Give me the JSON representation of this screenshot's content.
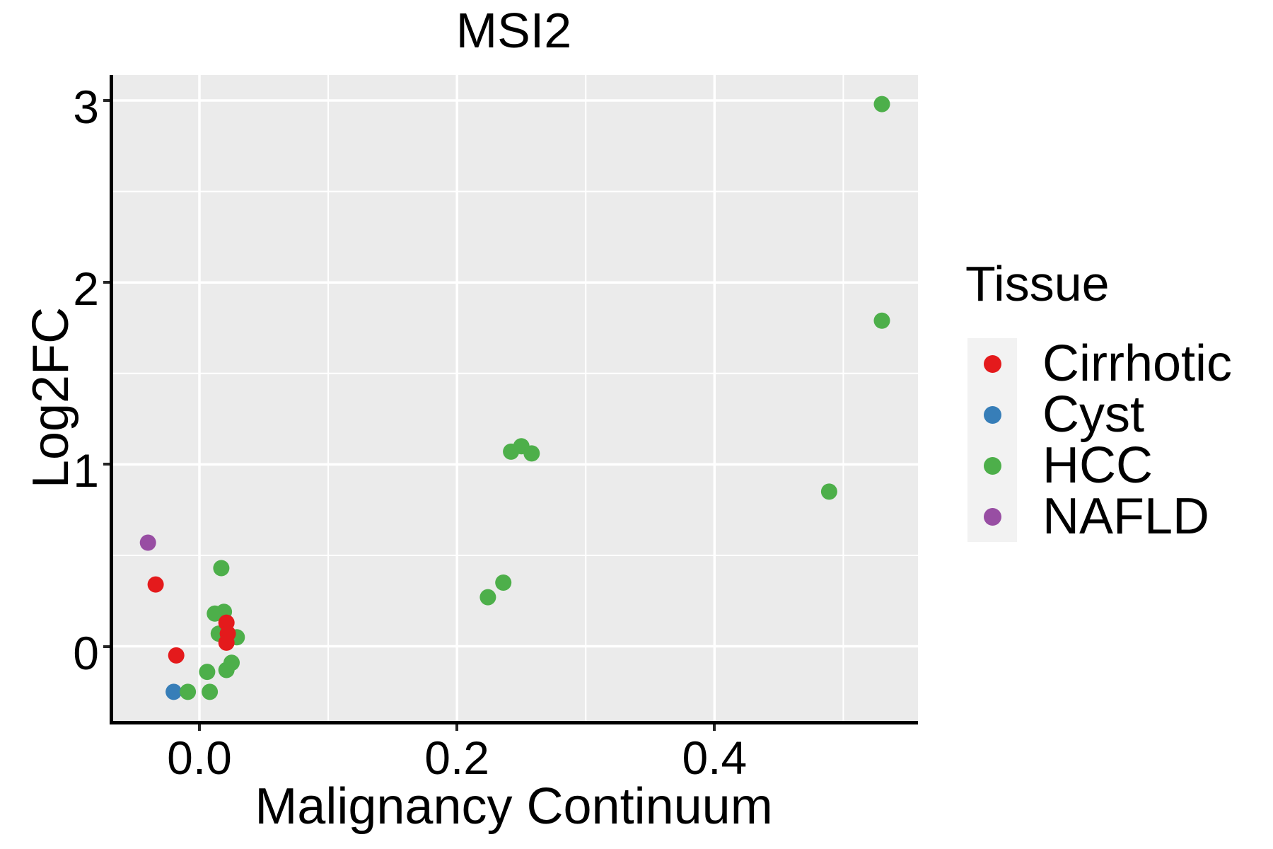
{
  "chart_data": {
    "type": "scatter",
    "title": "MSI2",
    "xlabel": "Malignancy Continuum",
    "ylabel": "Log2FC",
    "legend_title": "Tissue",
    "legend_position": "right",
    "grid": "major-and-minor-white-on-gray",
    "panel_background": "#EBEBEB",
    "gridline_color": "#FFFFFF",
    "axis_line_color": "#000000",
    "tick_color": "#262626",
    "xlim": [
      -0.067,
      0.558
    ],
    "ylim": [
      -0.41,
      3.14
    ],
    "x_ticks": [
      {
        "value": 0.0,
        "label": "0.0"
      },
      {
        "value": 0.2,
        "label": "0.2"
      },
      {
        "value": 0.4,
        "label": "0.4"
      }
    ],
    "x_minor_gridlines": [
      0.1,
      0.3,
      0.5
    ],
    "y_ticks": [
      {
        "value": 0,
        "label": "0"
      },
      {
        "value": 1,
        "label": "1"
      },
      {
        "value": 2,
        "label": "2"
      },
      {
        "value": 3,
        "label": "3"
      }
    ],
    "y_minor_gridlines": [
      0.5,
      1.5,
      2.5
    ],
    "point_radius_px": 11.5,
    "series": [
      {
        "name": "Cirrhotic",
        "color": "#E41A1C",
        "points": [
          [
            -0.034,
            0.34
          ],
          [
            -0.018,
            -0.05
          ],
          [
            0.021,
            0.13
          ],
          [
            0.022,
            0.07
          ],
          [
            0.021,
            0.02
          ]
        ]
      },
      {
        "name": "Cyst",
        "color": "#377EB8",
        "points": [
          [
            -0.02,
            -0.25
          ]
        ]
      },
      {
        "name": "HCC",
        "color": "#4DAF4A",
        "points": [
          [
            0.017,
            0.43
          ],
          [
            0.012,
            0.18
          ],
          [
            0.019,
            0.19
          ],
          [
            0.015,
            0.07
          ],
          [
            0.029,
            0.05
          ],
          [
            0.025,
            -0.09
          ],
          [
            0.021,
            -0.13
          ],
          [
            0.006,
            -0.14
          ],
          [
            -0.009,
            -0.25
          ],
          [
            0.008,
            -0.25
          ],
          [
            0.224,
            0.27
          ],
          [
            0.236,
            0.35
          ],
          [
            0.242,
            1.07
          ],
          [
            0.25,
            1.1
          ],
          [
            0.258,
            1.06
          ],
          [
            0.489,
            0.85
          ],
          [
            0.53,
            1.79
          ],
          [
            0.53,
            2.98
          ]
        ]
      },
      {
        "name": "NAFLD",
        "color": "#984EA3",
        "points": [
          [
            -0.04,
            0.57
          ]
        ]
      }
    ],
    "draw_order": [
      "Cyst",
      "HCC",
      "Cirrhotic",
      "NAFLD"
    ]
  }
}
